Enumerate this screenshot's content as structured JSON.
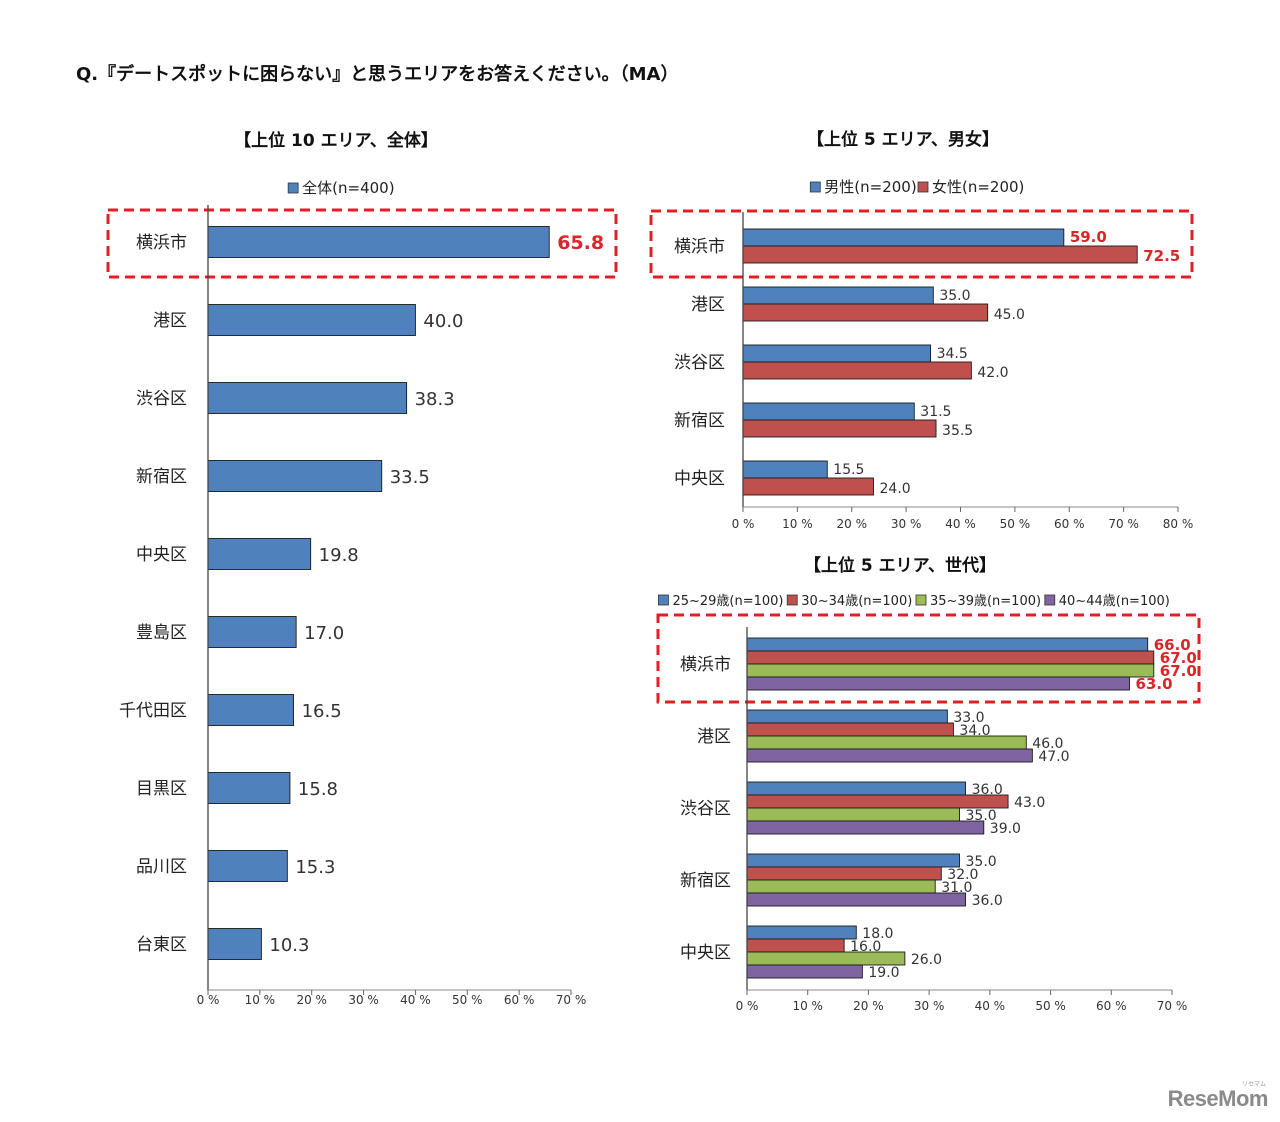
{
  "question": "Q.『デートスポットに困らない』と思うエリアをお答えください。（MA）",
  "logo": {
    "text": "ReseMom",
    "kana": "リセマム"
  },
  "colors": {
    "blue": "#4f81bd",
    "red": "#c0504d",
    "green": "#9bbb59",
    "purple": "#8064a2",
    "highlight": "#e02020",
    "label_red": "#d9262b"
  },
  "chart_data": [
    {
      "type": "bar",
      "orientation": "horizontal",
      "title": "【上位 10 エリア、全体】",
      "categories": [
        "横浜市",
        "港区",
        "渋谷区",
        "新宿区",
        "中央区",
        "豊島区",
        "千代田区",
        "目黒区",
        "品川区",
        "台東区"
      ],
      "series": [
        {
          "name": "全体(n=400)",
          "color": "#4f81bd",
          "values": [
            65.8,
            40.0,
            38.3,
            33.5,
            19.8,
            17.0,
            16.5,
            15.8,
            15.3,
            10.3
          ],
          "labels": [
            "65.8",
            "40.0",
            "38.3",
            "33.5",
            "19.8",
            "17.0",
            "16.5",
            "15.8",
            "15.3",
            "10.3"
          ]
        }
      ],
      "xlim": [
        0,
        70
      ],
      "xticks": [
        "0 %",
        "10 %",
        "20 %",
        "30 %",
        "40 %",
        "50 %",
        "60 %",
        "70 %"
      ],
      "legend": "top-center",
      "highlight_category": "横浜市",
      "grid": false
    },
    {
      "type": "bar",
      "orientation": "horizontal",
      "title": "【上位 5 エリア、男女】",
      "categories": [
        "横浜市",
        "港区",
        "渋谷区",
        "新宿区",
        "中央区"
      ],
      "series": [
        {
          "name": "男性(n=200)",
          "color": "#4f81bd",
          "values": [
            59.0,
            35.0,
            34.5,
            31.5,
            15.5
          ],
          "labels": [
            "59.0",
            "35.0",
            "34.5",
            "31.5",
            "15.5"
          ]
        },
        {
          "name": "女性(n=200)",
          "color": "#c0504d",
          "values": [
            72.5,
            45.0,
            42.0,
            35.5,
            24.0
          ],
          "labels": [
            "72.5",
            "45.0",
            "42.0",
            "35.5",
            "24.0"
          ]
        }
      ],
      "xlim": [
        0,
        80
      ],
      "xticks": [
        "0 %",
        "10 %",
        "20 %",
        "30 %",
        "40 %",
        "50 %",
        "60 %",
        "70 %",
        "80 %"
      ],
      "legend": "top-center",
      "highlight_category": "横浜市",
      "grid": false
    },
    {
      "type": "bar",
      "orientation": "horizontal",
      "title": "【上位 5 エリア、世代】",
      "categories": [
        "横浜市",
        "港区",
        "渋谷区",
        "新宿区",
        "中央区"
      ],
      "series": [
        {
          "name": "25~29歳(n=100)",
          "color": "#4f81bd",
          "values": [
            66.0,
            33.0,
            36.0,
            35.0,
            18.0
          ],
          "labels": [
            "66.0",
            "33.0",
            "36.0",
            "35.0",
            "18.0"
          ]
        },
        {
          "name": "30~34歳(n=100)",
          "color": "#c0504d",
          "values": [
            67.0,
            34.0,
            43.0,
            32.0,
            16.0
          ],
          "labels": [
            "67.0",
            "34.0",
            "43.0",
            "32.0",
            "16.0"
          ]
        },
        {
          "name": "35~39歳(n=100)",
          "color": "#9bbb59",
          "values": [
            67.0,
            46.0,
            35.0,
            31.0,
            26.0
          ],
          "labels": [
            "67.0",
            "46.0",
            "35.0",
            "31.0",
            "26.0"
          ]
        },
        {
          "name": "40~44歳(n=100)",
          "color": "#8064a2",
          "values": [
            63.0,
            47.0,
            39.0,
            36.0,
            19.0
          ],
          "labels": [
            "63.0",
            "47.0",
            "39.0",
            "36.0",
            "19.0"
          ]
        }
      ],
      "xlim": [
        0,
        70
      ],
      "xticks": [
        "0 %",
        "10 %",
        "20 %",
        "30 %",
        "40 %",
        "50 %",
        "60 %",
        "70 %"
      ],
      "legend": "top-center",
      "highlight_category": "横浜市",
      "grid": false
    }
  ]
}
